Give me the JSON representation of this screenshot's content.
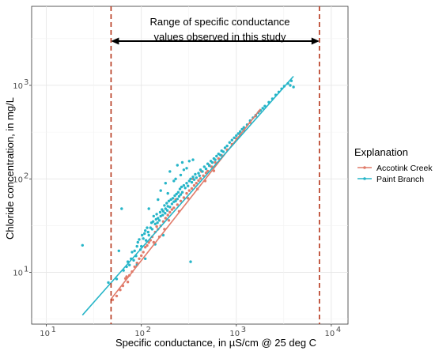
{
  "chart_data": {
    "type": "scatter",
    "title": "",
    "xlabel": "Specific conductance, in µS/cm @ 25 deg C",
    "ylabel": "Chloride concentration, in mg/L",
    "x_scale": "log",
    "y_scale": "log",
    "xlim": [
      7,
      15000
    ],
    "ylim": [
      2.8,
      7000
    ],
    "x_ticks": [
      {
        "value": 10,
        "label": "10",
        "exp": "1"
      },
      {
        "value": 100,
        "label": "10",
        "exp": "2"
      },
      {
        "value": 1000,
        "label": "10",
        "exp": "3"
      },
      {
        "value": 10000,
        "label": "10",
        "exp": "4"
      }
    ],
    "y_ticks": [
      {
        "value": 10,
        "label": "10",
        "exp": "1"
      },
      {
        "value": 100,
        "label": "10",
        "exp": "2"
      },
      {
        "value": 1000,
        "label": "10",
        "exp": "3"
      }
    ],
    "grid": true,
    "legend": {
      "title": "Explanation",
      "position": "right",
      "entries": [
        {
          "name": "Accotink Creek",
          "color": "#e07b6a"
        },
        {
          "name": "Paint Branch",
          "color": "#26b5c8"
        }
      ]
    },
    "annotation": {
      "line1": "Range of specific conductance",
      "line2": "values observed in this study",
      "from": 48,
      "to": 7500
    },
    "vlines": [
      48,
      7500
    ],
    "vline_color": "#b5351a",
    "series": [
      {
        "name": "Accotink Creek",
        "color": "#e07b6a",
        "fit": {
          "x": [
            48,
            1800
          ],
          "y": [
            5.2,
            560
          ]
        },
        "points": [
          [
            50,
            5.1
          ],
          [
            55,
            5.6
          ],
          [
            60,
            6.5
          ],
          [
            64,
            7.2
          ],
          [
            68,
            8.6
          ],
          [
            70,
            9.0
          ],
          [
            72,
            7.9
          ],
          [
            75,
            9.3
          ],
          [
            80,
            10.2
          ],
          [
            85,
            11.5
          ],
          [
            90,
            12.6
          ],
          [
            95,
            14.0
          ],
          [
            100,
            15.1
          ],
          [
            105,
            16.5
          ],
          [
            110,
            18.6
          ],
          [
            115,
            19.4
          ],
          [
            120,
            20.9
          ],
          [
            125,
            22.1
          ],
          [
            130,
            24.0
          ],
          [
            140,
            27.0
          ],
          [
            150,
            29.0
          ],
          [
            160,
            31.5
          ],
          [
            170,
            35.0
          ],
          [
            180,
            38.0
          ],
          [
            190,
            41.0
          ],
          [
            200,
            44.0
          ],
          [
            210,
            47.0
          ],
          [
            220,
            49.0
          ],
          [
            240,
            53.0
          ],
          [
            260,
            58.0
          ],
          [
            280,
            63.0
          ],
          [
            300,
            70.0
          ],
          [
            320,
            75.0
          ],
          [
            340,
            79.0
          ],
          [
            360,
            85.0
          ],
          [
            380,
            90.0
          ],
          [
            400,
            96.0
          ],
          [
            420,
            101.0
          ],
          [
            450,
            108.0
          ],
          [
            480,
            116.0
          ],
          [
            500,
            121.0
          ],
          [
            550,
            135.0
          ],
          [
            600,
            150.0
          ],
          [
            650,
            165.0
          ],
          [
            700,
            178.0
          ],
          [
            800,
            205.0
          ],
          [
            900,
            235.0
          ],
          [
            1000,
            270.0
          ],
          [
            1100,
            300.0
          ],
          [
            1200,
            330.0
          ],
          [
            1400,
            400.0
          ],
          [
            1600,
            470.0
          ],
          [
            1750,
            530.0
          ],
          [
            135,
            21.0
          ],
          [
            145,
            31.0
          ],
          [
            155,
            24.0
          ],
          [
            175,
            29.0
          ],
          [
            195,
            36.0
          ],
          [
            230,
            60.0
          ],
          [
            250,
            45.0
          ],
          [
            270,
            72.0
          ],
          [
            310,
            62.0
          ],
          [
            350,
            100.0
          ],
          [
            390,
            78.0
          ],
          [
            430,
            120.0
          ],
          [
            470,
            95.0
          ],
          [
            520,
            140.0
          ],
          [
            580,
            122.0
          ]
        ]
      },
      {
        "name": "Paint Branch",
        "color": "#26b5c8",
        "fit": {
          "x": [
            24,
            4000
          ],
          "y": [
            3.5,
            1250
          ]
        },
        "points": [
          [
            24,
            19.5
          ],
          [
            45,
            7.8
          ],
          [
            55,
            8.5
          ],
          [
            58,
            17.0
          ],
          [
            62,
            48.0
          ],
          [
            65,
            10.5
          ],
          [
            70,
            11.5
          ],
          [
            72,
            13.0
          ],
          [
            75,
            12.0
          ],
          [
            78,
            14.0
          ],
          [
            80,
            16.5
          ],
          [
            83,
            13.5
          ],
          [
            85,
            17.0
          ],
          [
            88,
            15.0
          ],
          [
            90,
            19.0
          ],
          [
            92,
            21.0
          ],
          [
            95,
            22.5
          ],
          [
            98,
            17.5
          ],
          [
            100,
            19.0
          ],
          [
            102,
            25.0
          ],
          [
            105,
            23.0
          ],
          [
            108,
            26.0
          ],
          [
            110,
            28.0
          ],
          [
            112,
            22.0
          ],
          [
            115,
            30.0
          ],
          [
            118,
            27.0
          ],
          [
            120,
            25.0
          ],
          [
            125,
            30.0
          ],
          [
            128,
            34.0
          ],
          [
            130,
            29.0
          ],
          [
            133,
            35.0
          ],
          [
            135,
            40.0
          ],
          [
            140,
            33.0
          ],
          [
            143,
            37.0
          ],
          [
            145,
            42.0
          ],
          [
            148,
            34.0
          ],
          [
            150,
            38.0
          ],
          [
            155,
            36.0
          ],
          [
            158,
            44.0
          ],
          [
            160,
            40.0
          ],
          [
            165,
            47.0
          ],
          [
            168,
            41.0
          ],
          [
            170,
            45.0
          ],
          [
            175,
            52.0
          ],
          [
            178,
            43.0
          ],
          [
            180,
            48.0
          ],
          [
            185,
            55.0
          ],
          [
            188,
            46.0
          ],
          [
            190,
            51.0
          ],
          [
            195,
            58.0
          ],
          [
            200,
            50.0
          ],
          [
            205,
            60.0
          ],
          [
            210,
            54.0
          ],
          [
            215,
            62.0
          ],
          [
            220,
            57.0
          ],
          [
            225,
            66.0
          ],
          [
            230,
            58.0
          ],
          [
            235,
            69.0
          ],
          [
            240,
            61.0
          ],
          [
            245,
            72.0
          ],
          [
            250,
            65.0
          ],
          [
            255,
            78.0
          ],
          [
            260,
            68.0
          ],
          [
            265,
            82.0
          ],
          [
            270,
            72.0
          ],
          [
            280,
            85.0
          ],
          [
            290,
            80.0
          ],
          [
            300,
            90.0
          ],
          [
            310,
            84.0
          ],
          [
            320,
            95.0
          ],
          [
            330,
            100.0
          ],
          [
            340,
            92.0
          ],
          [
            350,
            105.0
          ],
          [
            360,
            98.0
          ],
          [
            370,
            112.0
          ],
          [
            380,
            103.0
          ],
          [
            400,
            115.0
          ],
          [
            410,
            108.0
          ],
          [
            420,
            125.0
          ],
          [
            440,
            120.0
          ],
          [
            460,
            135.0
          ],
          [
            480,
            128.0
          ],
          [
            500,
            145.0
          ],
          [
            520,
            138.0
          ],
          [
            540,
            155.0
          ],
          [
            560,
            150.0
          ],
          [
            580,
            165.0
          ],
          [
            600,
            160.0
          ],
          [
            620,
            175.0
          ],
          [
            650,
            185.0
          ],
          [
            680,
            180.0
          ],
          [
            700,
            200.0
          ],
          [
            730,
            195.0
          ],
          [
            760,
            215.0
          ],
          [
            800,
            225.0
          ],
          [
            850,
            245.0
          ],
          [
            900,
            260.0
          ],
          [
            950,
            275.0
          ],
          [
            1000,
            290.0
          ],
          [
            1050,
            305.0
          ],
          [
            1100,
            320.0
          ],
          [
            1150,
            340.0
          ],
          [
            1200,
            355.0
          ],
          [
            1300,
            380.0
          ],
          [
            1400,
            420.0
          ],
          [
            1500,
            450.0
          ],
          [
            1600,
            480.0
          ],
          [
            1700,
            510.0
          ],
          [
            1800,
            540.0
          ],
          [
            1900,
            570.0
          ],
          [
            2000,
            600.0
          ],
          [
            2200,
            660.0
          ],
          [
            2400,
            720.0
          ],
          [
            2600,
            790.0
          ],
          [
            2800,
            850.0
          ],
          [
            3000,
            920.0
          ],
          [
            3200,
            980.0
          ],
          [
            3500,
            1050.0
          ],
          [
            3700,
            1000.0
          ],
          [
            3800,
            1120.0
          ],
          [
            4000,
            960.0
          ],
          [
            120,
            48.0
          ],
          [
            200,
            120.0
          ],
          [
            240,
            140.0
          ],
          [
            300,
            130.0
          ],
          [
            350,
            160.0
          ],
          [
            260,
            110.0
          ],
          [
            280,
            125.0
          ],
          [
            160,
            75.0
          ],
          [
            180,
            90.0
          ],
          [
            220,
            95.0
          ],
          [
            330,
            13.0
          ],
          [
            170,
            25.0
          ],
          [
            140,
            20.0
          ],
          [
            110,
            14.0
          ],
          [
            90,
            12.0
          ],
          [
            320,
            155.0
          ],
          [
            270,
            150.0
          ],
          [
            230,
            100.0
          ],
          [
            190,
            70.0
          ],
          [
            150,
            60.0
          ]
        ]
      }
    ]
  }
}
